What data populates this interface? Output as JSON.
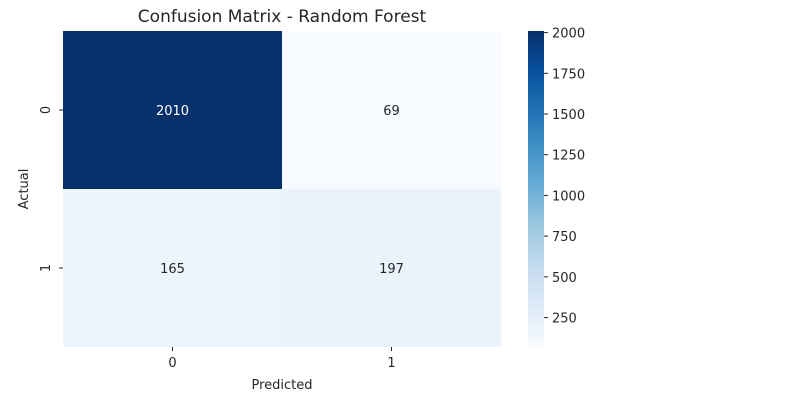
{
  "chart_data": {
    "type": "heatmap",
    "title": "Confusion Matrix - Random Forest",
    "xlabel": "Predicted",
    "ylabel": "Actual",
    "x_categories": [
      "0",
      "1"
    ],
    "y_categories": [
      "0",
      "1"
    ],
    "values": [
      [
        2010,
        69
      ],
      [
        165,
        197
      ]
    ],
    "colormap": "Blues",
    "colorbar": {
      "range": [
        69,
        2010
      ],
      "ticks": [
        "250",
        "500",
        "750",
        "1000",
        "1250",
        "1500",
        "1750",
        "2000"
      ]
    },
    "grid": false,
    "colors": {
      "low": "#f7fbff",
      "high": "#08306b",
      "text_on_dark": "#ffffff",
      "text_on_light": "#262626"
    }
  }
}
